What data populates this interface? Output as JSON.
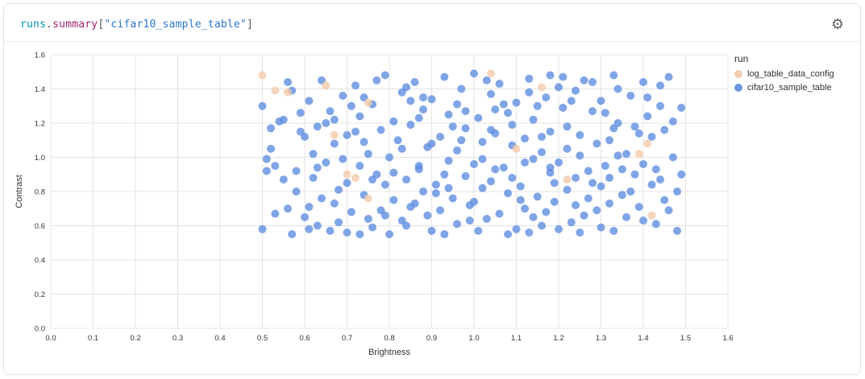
{
  "panel": {
    "title_segments": [
      {
        "text": "runs",
        "color": "#0096ab"
      },
      {
        "text": ".",
        "color": "#555555"
      },
      {
        "text": "summary",
        "color": "#a3246f"
      },
      {
        "text": "[",
        "color": "#555555"
      },
      {
        "text": "\"cifar10_sample_table\"",
        "color": "#2d76c9"
      },
      {
        "text": "]",
        "color": "#555555"
      }
    ],
    "gear_icon": "gear-icon"
  },
  "legend": {
    "title": "run",
    "items": [
      {
        "label": "log_table_data_config",
        "color": "#f2c9a9"
      },
      {
        "label": "cifar10_sample_table",
        "color": "#5c8ce0"
      }
    ]
  },
  "chart_data": {
    "type": "scatter",
    "title": "",
    "xlabel": "Brightness",
    "ylabel": "Contrast",
    "xlim": [
      0.0,
      1.6
    ],
    "ylim": [
      0.0,
      1.6
    ],
    "x_ticks": [
      0.0,
      0.1,
      0.2,
      0.3,
      0.4,
      0.5,
      0.6,
      0.7,
      0.8,
      0.9,
      1.0,
      1.1,
      1.2,
      1.3,
      1.4,
      1.5,
      1.6
    ],
    "y_ticks": [
      0.0,
      0.2,
      0.4,
      0.6,
      0.8,
      1.0,
      1.2,
      1.4,
      1.6
    ],
    "grid": true,
    "legend_position": "right",
    "point_radius": 5,
    "point_opacity": 0.78,
    "grid_color": "#e4e4e4",
    "tick_color": "#333333",
    "series": [
      {
        "name": "log_table_data_config",
        "color": "#f2c9a9",
        "points": [
          [
            0.5,
            1.48
          ],
          [
            0.53,
            1.39
          ],
          [
            0.56,
            1.38
          ],
          [
            0.65,
            1.42
          ],
          [
            0.75,
            1.32
          ],
          [
            1.04,
            1.49
          ],
          [
            1.16,
            1.41
          ],
          [
            0.7,
            0.9
          ],
          [
            0.72,
            0.88
          ],
          [
            0.75,
            0.76
          ],
          [
            1.1,
            1.05
          ],
          [
            1.22,
            0.87
          ],
          [
            1.39,
            1.02
          ],
          [
            1.41,
            1.08
          ],
          [
            1.42,
            0.66
          ],
          [
            0.67,
            1.13
          ]
        ]
      },
      {
        "name": "cifar10_sample_table",
        "color": "#5c8ce0",
        "points": [
          [
            0.5,
            1.3
          ],
          [
            0.52,
            1.05
          ],
          [
            0.51,
            0.99
          ],
          [
            0.5,
            0.58
          ],
          [
            0.53,
            0.95
          ],
          [
            0.55,
            1.22
          ],
          [
            0.56,
            0.7
          ],
          [
            0.57,
            1.39
          ],
          [
            0.58,
            0.92
          ],
          [
            0.59,
            1.15
          ],
          [
            0.6,
            0.65
          ],
          [
            0.61,
            1.33
          ],
          [
            0.62,
            0.88
          ],
          [
            0.63,
            1.18
          ],
          [
            0.63,
            0.6
          ],
          [
            0.64,
            1.45
          ],
          [
            0.65,
            0.97
          ],
          [
            0.66,
            1.27
          ],
          [
            0.67,
            0.73
          ],
          [
            0.67,
            1.08
          ],
          [
            0.68,
            0.62
          ],
          [
            0.69,
            1.36
          ],
          [
            0.7,
            0.85
          ],
          [
            0.7,
            1.13
          ],
          [
            0.71,
            0.68
          ],
          [
            0.72,
            1.42
          ],
          [
            0.73,
            0.95
          ],
          [
            0.73,
            1.24
          ],
          [
            0.74,
            0.78
          ],
          [
            0.75,
            1.02
          ],
          [
            0.76,
            0.59
          ],
          [
            0.76,
            1.31
          ],
          [
            0.77,
            0.9
          ],
          [
            0.78,
            1.16
          ],
          [
            0.79,
            0.66
          ],
          [
            0.79,
            1.48
          ],
          [
            0.8,
            1.0
          ],
          [
            0.81,
            1.21
          ],
          [
            0.81,
            0.75
          ],
          [
            0.82,
            1.1
          ],
          [
            0.83,
            0.63
          ],
          [
            0.83,
            1.38
          ],
          [
            0.84,
            0.87
          ],
          [
            0.85,
            1.19
          ],
          [
            0.85,
            0.71
          ],
          [
            0.86,
            1.44
          ],
          [
            0.87,
            0.93
          ],
          [
            0.88,
            1.28
          ],
          [
            0.88,
            0.8
          ],
          [
            0.89,
            1.06
          ],
          [
            0.9,
            0.57
          ],
          [
            0.9,
            1.34
          ],
          [
            0.91,
            0.84
          ],
          [
            0.92,
            1.12
          ],
          [
            0.92,
            0.69
          ],
          [
            0.93,
            1.47
          ],
          [
            0.94,
            0.98
          ],
          [
            0.94,
            1.25
          ],
          [
            0.95,
            0.76
          ],
          [
            0.96,
            1.04
          ],
          [
            0.96,
            0.61
          ],
          [
            0.97,
            1.4
          ],
          [
            0.98,
            0.89
          ],
          [
            0.98,
            1.17
          ],
          [
            0.99,
            0.72
          ],
          [
            1.0,
            1.49
          ],
          [
            1.0,
            0.96
          ],
          [
            1.01,
            1.23
          ],
          [
            1.02,
            0.82
          ],
          [
            1.02,
            1.09
          ],
          [
            1.03,
            0.64
          ],
          [
            1.04,
            1.37
          ],
          [
            1.04,
            0.86
          ],
          [
            1.05,
            1.14
          ],
          [
            1.06,
            0.67
          ],
          [
            1.06,
            1.43
          ],
          [
            1.07,
            0.94
          ],
          [
            1.08,
            1.26
          ],
          [
            1.08,
            0.79
          ],
          [
            1.09,
            1.07
          ],
          [
            1.1,
            0.58
          ],
          [
            1.1,
            1.32
          ],
          [
            1.11,
            0.83
          ],
          [
            1.12,
            1.11
          ],
          [
            1.12,
            0.7
          ],
          [
            1.13,
            1.46
          ],
          [
            1.14,
            0.99
          ],
          [
            1.14,
            1.22
          ],
          [
            1.15,
            0.77
          ],
          [
            1.16,
            1.03
          ],
          [
            1.16,
            0.6
          ],
          [
            1.17,
            1.35
          ],
          [
            1.18,
            0.91
          ],
          [
            1.18,
            1.15
          ],
          [
            1.19,
            0.74
          ],
          [
            1.2,
            1.41
          ],
          [
            1.2,
            0.97
          ],
          [
            1.21,
            1.29
          ],
          [
            1.22,
            0.81
          ],
          [
            1.22,
            1.05
          ],
          [
            1.23,
            0.62
          ],
          [
            1.24,
            1.39
          ],
          [
            1.24,
            0.88
          ],
          [
            1.25,
            1.13
          ],
          [
            1.26,
            0.66
          ],
          [
            1.26,
            1.45
          ],
          [
            1.27,
            0.92
          ],
          [
            1.28,
            1.27
          ],
          [
            1.28,
            0.85
          ],
          [
            1.29,
            1.08
          ],
          [
            1.3,
            0.59
          ],
          [
            1.3,
            1.33
          ],
          [
            1.31,
            0.95
          ],
          [
            1.32,
            1.1
          ],
          [
            1.32,
            0.73
          ],
          [
            1.33,
            1.48
          ],
          [
            1.34,
            1.01
          ],
          [
            1.34,
            1.2
          ],
          [
            1.35,
            0.78
          ],
          [
            1.36,
            1.02
          ],
          [
            1.36,
            0.65
          ],
          [
            1.37,
            1.36
          ],
          [
            1.38,
            0.9
          ],
          [
            1.38,
            1.18
          ],
          [
            1.39,
            0.71
          ],
          [
            1.4,
            1.44
          ],
          [
            1.4,
            0.96
          ],
          [
            1.41,
            1.24
          ],
          [
            1.42,
            0.84
          ],
          [
            1.42,
            1.12
          ],
          [
            1.43,
            0.61
          ],
          [
            1.44,
            1.3
          ],
          [
            1.44,
            0.87
          ],
          [
            1.45,
            1.16
          ],
          [
            1.45,
            0.75
          ],
          [
            1.46,
            1.47
          ],
          [
            1.47,
            1.0
          ],
          [
            1.47,
            1.21
          ],
          [
            1.48,
            0.8
          ],
          [
            1.49,
            1.29
          ],
          [
            0.54,
            1.21
          ],
          [
            0.58,
            0.8
          ],
          [
            0.62,
            1.02
          ],
          [
            0.66,
            0.57
          ],
          [
            0.71,
            1.3
          ],
          [
            0.75,
            0.64
          ],
          [
            0.8,
            0.55
          ],
          [
            0.84,
            1.41
          ],
          [
            0.89,
            0.66
          ],
          [
            0.93,
            0.55
          ],
          [
            0.97,
            1.1
          ],
          [
            1.01,
            0.57
          ],
          [
            1.05,
            0.93
          ],
          [
            1.09,
            1.19
          ],
          [
            1.13,
            0.56
          ],
          [
            1.17,
            0.68
          ],
          [
            1.21,
            1.47
          ],
          [
            1.25,
            0.56
          ],
          [
            1.29,
            0.69
          ],
          [
            1.33,
            0.57
          ],
          [
            0.55,
            0.87
          ],
          [
            0.6,
            1.12
          ],
          [
            0.64,
            0.76
          ],
          [
            0.69,
            0.99
          ],
          [
            0.74,
            1.35
          ],
          [
            0.78,
            0.69
          ],
          [
            0.83,
            1.05
          ],
          [
            0.87,
            1.23
          ],
          [
            0.91,
            0.79
          ],
          [
            0.96,
            1.31
          ],
          [
            1.0,
            0.74
          ],
          [
            1.04,
            1.16
          ],
          [
            1.09,
            0.88
          ],
          [
            1.13,
            1.38
          ],
          [
            1.18,
            0.94
          ],
          [
            1.22,
            1.18
          ],
          [
            1.27,
            0.76
          ],
          [
            1.31,
            1.26
          ],
          [
            1.35,
            0.93
          ],
          [
            1.4,
            0.63
          ],
          [
            0.51,
            0.92
          ],
          [
            0.56,
            1.44
          ],
          [
            0.61,
            0.71
          ],
          [
            0.65,
            1.2
          ],
          [
            0.7,
            0.56
          ],
          [
            0.74,
            1.09
          ],
          [
            0.79,
            0.84
          ],
          [
            0.84,
            0.6
          ],
          [
            0.88,
            1.35
          ],
          [
            0.93,
            0.9
          ],
          [
            0.98,
            1.27
          ],
          [
            1.02,
            0.99
          ],
          [
            1.07,
            1.31
          ],
          [
            1.11,
            0.75
          ],
          [
            1.16,
            1.12
          ],
          [
            1.2,
            0.58
          ],
          [
            1.25,
            1.01
          ],
          [
            1.3,
            0.83
          ],
          [
            1.34,
            1.4
          ],
          [
            1.39,
            1.14
          ],
          [
            1.43,
            0.93
          ],
          [
            1.48,
            0.57
          ],
          [
            0.53,
            0.67
          ],
          [
            0.59,
            1.26
          ],
          [
            0.68,
            0.81
          ],
          [
            0.77,
            1.45
          ],
          [
            0.86,
            0.73
          ],
          [
            0.95,
            1.18
          ],
          [
            1.03,
            1.45
          ],
          [
            1.12,
            0.97
          ],
          [
            1.19,
            0.85
          ],
          [
            1.28,
            1.44
          ],
          [
            1.37,
            0.8
          ],
          [
            1.46,
            0.69
          ],
          [
            0.52,
            1.17
          ],
          [
            0.63,
            0.94
          ],
          [
            0.72,
            1.15
          ],
          [
            0.81,
            0.91
          ],
          [
            0.9,
            1.08
          ],
          [
            0.99,
            0.63
          ],
          [
            1.08,
            0.55
          ],
          [
            1.15,
            1.3
          ],
          [
            1.24,
            0.72
          ],
          [
            1.33,
            1.17
          ],
          [
            1.41,
            1.35
          ],
          [
            1.49,
            0.9
          ],
          [
            0.57,
            0.55
          ],
          [
            0.67,
            1.22
          ],
          [
            0.76,
            0.87
          ],
          [
            0.85,
            1.33
          ],
          [
            0.94,
            0.82
          ],
          [
            1.05,
            1.28
          ],
          [
            1.14,
            0.65
          ],
          [
            1.23,
            1.33
          ],
          [
            1.32,
            0.88
          ],
          [
            1.44,
            1.42
          ],
          [
            0.61,
            0.58
          ],
          [
            0.73,
            0.55
          ],
          [
            0.87,
            0.95
          ],
          [
            1.18,
            1.48
          ]
        ]
      }
    ]
  }
}
